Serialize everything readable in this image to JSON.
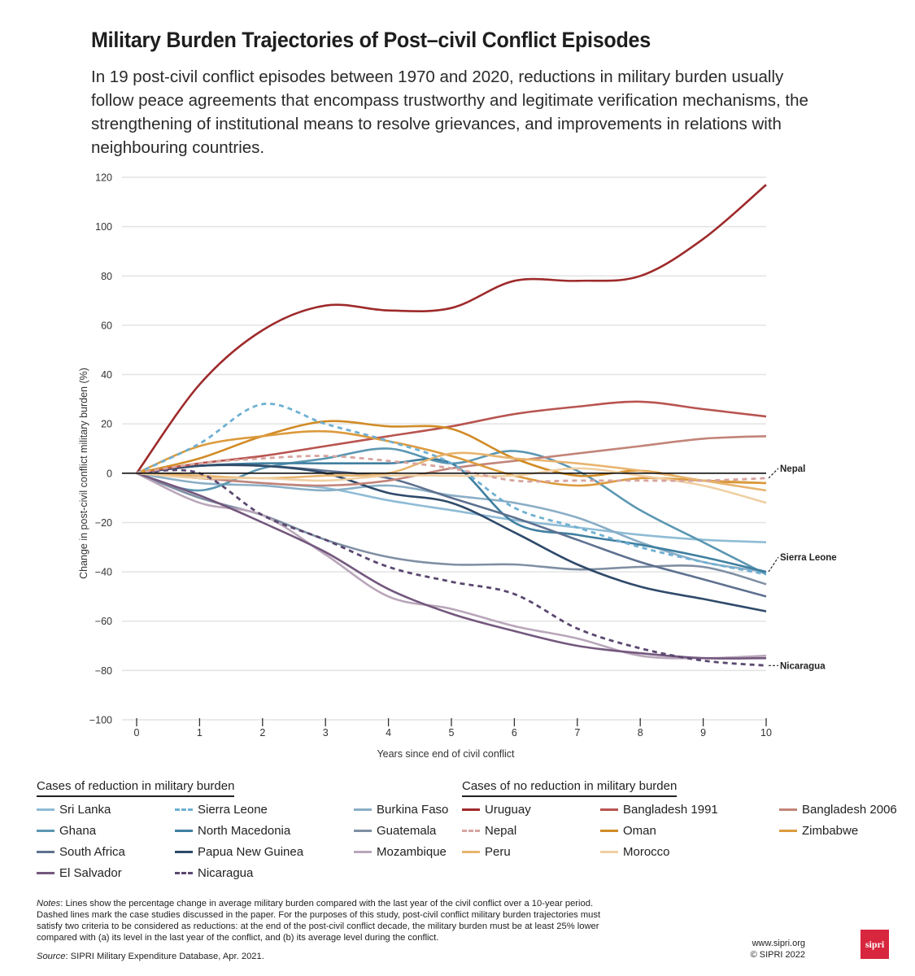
{
  "header": {
    "title": "Military Burden Trajectories of Post–civil Conflict Episodes",
    "subtitle": "In 19 post-civil conflict episodes between 1970 and 2020, reductions in military burden usually follow peace agreements that encompass trustworthy and legitimate verification mechanisms, the strengthening of institutional means to resolve grievances, and improvements in relations with neighbouring countries."
  },
  "chart_data": {
    "type": "line",
    "title": "Military Burden Trajectories of Post–civil Conflict Episodes",
    "xlabel": "Years since end of civil conflict",
    "ylabel": "Change in post-civil conflict military burden (%)",
    "x": [
      0,
      1,
      2,
      3,
      4,
      5,
      6,
      7,
      8,
      9,
      10
    ],
    "xticks": [
      "0",
      "1",
      "2",
      "3",
      "4",
      "5",
      "6",
      "7",
      "8",
      "9",
      "10"
    ],
    "yticks": [
      "120",
      "100",
      "80",
      "60",
      "40",
      "20",
      "0",
      "−20",
      "−40",
      "−60",
      "−80",
      "−100"
    ],
    "ytick_values": [
      120,
      100,
      80,
      60,
      40,
      20,
      0,
      -20,
      -40,
      -60,
      -80,
      -100
    ],
    "xlim": [
      0,
      10
    ],
    "ylim": [
      -100,
      120
    ],
    "grid": true,
    "annotations": [
      {
        "label": "Nepal",
        "value": -2
      },
      {
        "label": "Sierra Leone",
        "value": -40
      },
      {
        "label": "Nicaragua",
        "value": -78
      }
    ],
    "groups": [
      {
        "title": "Cases of reduction in military burden",
        "series_names": [
          "Sri Lanka",
          "Sierra Leone",
          "Burkina Faso",
          "Ghana",
          "North Macedonia",
          "Guatemala",
          "South Africa",
          "Papua New Guinea",
          "Mozambique",
          "El Salvador",
          "Nicaragua"
        ]
      },
      {
        "title": "Cases of no reduction in military burden",
        "series_names": [
          "Uruguay",
          "Bangladesh 1991",
          "Bangladesh 2006",
          "Nepal",
          "Oman",
          "Zimbabwe",
          "Peru",
          "Morocco"
        ]
      }
    ],
    "series": [
      {
        "name": "Sri Lanka",
        "color": "#8fbcd6",
        "dashed": false,
        "values": [
          0,
          -2,
          -4,
          -6,
          -11,
          -15,
          -19,
          -22,
          -25,
          -27,
          -28
        ]
      },
      {
        "name": "Sierra Leone",
        "color": "#6fb0d2",
        "dashed": true,
        "values": [
          0,
          12,
          28,
          20,
          13,
          4,
          -14,
          -22,
          -30,
          -36,
          -41
        ]
      },
      {
        "name": "Burkina Faso",
        "color": "#8aaec6",
        "dashed": false,
        "values": [
          0,
          -4,
          -5,
          -7,
          -5,
          -9,
          -12,
          -18,
          -28,
          -36,
          -40
        ]
      },
      {
        "name": "Ghana",
        "color": "#5b97b2",
        "dashed": false,
        "values": [
          0,
          -7,
          2,
          6,
          10,
          4,
          9,
          1,
          -15,
          -28,
          -41
        ]
      },
      {
        "name": "North Macedonia",
        "color": "#3f7fa0",
        "dashed": false,
        "values": [
          0,
          3,
          4,
          4,
          4,
          4,
          -20,
          -25,
          -29,
          -34,
          -40
        ]
      },
      {
        "name": "Guatemala",
        "color": "#7f8fa3",
        "dashed": false,
        "values": [
          0,
          -10,
          -17,
          -27,
          -34,
          -37,
          -37,
          -39,
          -38,
          -38,
          -45
        ]
      },
      {
        "name": "South Africa",
        "color": "#5e7190",
        "dashed": false,
        "values": [
          0,
          3,
          3,
          1,
          -2,
          -10,
          -18,
          -27,
          -36,
          -43,
          -50
        ]
      },
      {
        "name": "Papua New Guinea",
        "color": "#2f4a6a",
        "dashed": false,
        "values": [
          0,
          3,
          3,
          0,
          -8,
          -12,
          -24,
          -37,
          -46,
          -51,
          -56
        ]
      },
      {
        "name": "Mozambique",
        "color": "#b9a6ba",
        "dashed": false,
        "values": [
          0,
          -12,
          -17,
          -33,
          -50,
          -55,
          -62,
          -67,
          -74,
          -75,
          -74
        ]
      },
      {
        "name": "El Salvador",
        "color": "#74587e",
        "dashed": false,
        "values": [
          0,
          -9,
          -20,
          -32,
          -47,
          -57,
          -64,
          -70,
          -73,
          -75,
          -75
        ]
      },
      {
        "name": "Nicaragua",
        "color": "#5a4870",
        "dashed": true,
        "values": [
          0,
          0,
          -17,
          -27,
          -38,
          -44,
          -49,
          -63,
          -71,
          -76,
          -78
        ]
      },
      {
        "name": "Uruguay",
        "color": "#9e2a2b",
        "dashed": false,
        "values": [
          0,
          36,
          58,
          68,
          66,
          67,
          78,
          78,
          80,
          95,
          117
        ]
      },
      {
        "name": "Bangladesh 1991",
        "color": "#b85450",
        "dashed": false,
        "values": [
          0,
          4,
          7,
          11,
          15,
          19,
          24,
          27,
          29,
          26,
          23
        ]
      },
      {
        "name": "Bangladesh 2006",
        "color": "#c38479",
        "dashed": false,
        "values": [
          0,
          -2,
          -4,
          -5,
          -3,
          2,
          5,
          8,
          11,
          14,
          15
        ]
      },
      {
        "name": "Nepal",
        "color": "#d7a49f",
        "dashed": true,
        "values": [
          0,
          4,
          6,
          7,
          5,
          2,
          -3,
          -3,
          -3,
          -3,
          -2
        ]
      },
      {
        "name": "Oman",
        "color": "#d18b26",
        "dashed": false,
        "values": [
          0,
          6,
          15,
          21,
          19,
          18,
          6,
          -1,
          1,
          -3,
          -4
        ]
      },
      {
        "name": "Zimbabwe",
        "color": "#dc9a3c",
        "dashed": false,
        "values": [
          0,
          11,
          15,
          17,
          13,
          7,
          -1,
          -5,
          -2,
          -3,
          -4
        ]
      },
      {
        "name": "Peru",
        "color": "#e8b46e",
        "dashed": false,
        "values": [
          0,
          -1,
          -2,
          -1,
          0,
          8,
          6,
          4,
          1,
          -3,
          -7
        ]
      },
      {
        "name": "Morocco",
        "color": "#efcfa2",
        "dashed": false,
        "values": [
          0,
          -2,
          -2,
          -3,
          -1,
          -1,
          -1,
          2,
          -1,
          -5,
          -12
        ]
      }
    ]
  },
  "notes": {
    "label": "Notes",
    "text": ": Lines show the percentage change in average military burden compared with the last year of the civil conflict over a 10-year period. Dashed lines mark the case studies discussed in the paper. For the purposes of this study, post-civil conflict military burden trajectories must satisfy two criteria to be considered as reductions: at the end of the post-civil conflict decade, the military burden must be at least 25% lower compared with (a) its level in the last year of the conflict, and (b) its average level during the conflict."
  },
  "source": {
    "label": "Source",
    "text": ": SIPRI Military Expenditure Database, Apr. 2021."
  },
  "footer": {
    "url": "www.sipri.org",
    "copyright": "© SIPRI 2022",
    "logo_text": "sipri",
    "logo_color": "#d7263d"
  }
}
